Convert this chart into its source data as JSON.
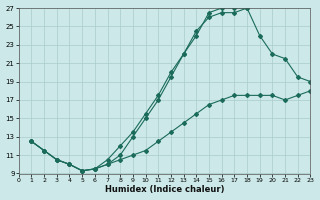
{
  "xlabel": "Humidex (Indice chaleur)",
  "xlim": [
    0,
    23
  ],
  "ylim": [
    9,
    27
  ],
  "xticks": [
    0,
    1,
    2,
    3,
    4,
    5,
    6,
    7,
    8,
    9,
    10,
    11,
    12,
    13,
    14,
    15,
    16,
    17,
    18,
    19,
    20,
    21,
    22,
    23
  ],
  "yticks": [
    9,
    11,
    13,
    15,
    17,
    19,
    21,
    23,
    25,
    27
  ],
  "bg_color": "#cce8e8",
  "grid_color": "#aacccc",
  "line_color": "#1a6b5a",
  "curve1_x": [
    1,
    2,
    3,
    4,
    5,
    6,
    7,
    8,
    9,
    10,
    11,
    12,
    13,
    14,
    15,
    16,
    17,
    18
  ],
  "curve1_y": [
    12.5,
    11.5,
    10.5,
    10.0,
    9.3,
    9.5,
    10.0,
    11.0,
    13.0,
    15.0,
    17.0,
    19.5,
    22.0,
    24.0,
    26.5,
    27.0,
    27.0,
    27.0
  ],
  "curve2_x": [
    1,
    2,
    3,
    4,
    5,
    6,
    7,
    8,
    9,
    10,
    11,
    12,
    13,
    14,
    15,
    16,
    17,
    18,
    19,
    20,
    21,
    22,
    23
  ],
  "curve2_y": [
    12.5,
    11.5,
    10.5,
    10.0,
    9.3,
    9.5,
    10.5,
    12.0,
    13.5,
    15.5,
    17.5,
    20.0,
    22.0,
    24.5,
    26.0,
    26.5,
    26.5,
    27.0,
    24.0,
    22.0,
    21.5,
    19.5,
    19.0
  ],
  "curve3_x": [
    1,
    2,
    3,
    4,
    5,
    6,
    7,
    8,
    9,
    10,
    11,
    12,
    13,
    14,
    15,
    16,
    17,
    18,
    19,
    20,
    21,
    22,
    23
  ],
  "curve3_y": [
    12.5,
    11.5,
    10.5,
    10.0,
    9.3,
    9.5,
    10.0,
    10.5,
    11.0,
    11.5,
    12.5,
    13.5,
    14.5,
    15.5,
    16.5,
    17.0,
    17.5,
    17.5,
    17.5,
    17.5,
    17.0,
    17.5,
    18.0
  ]
}
